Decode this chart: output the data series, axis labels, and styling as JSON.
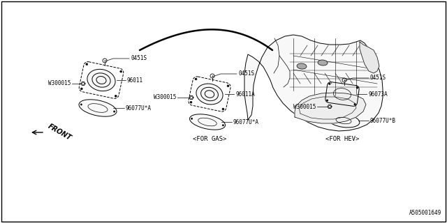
{
  "bg_color": "#ffffff",
  "border_color": "#000000",
  "diagram_id": "A505001649",
  "labels": {
    "p0451S_1": "0451S",
    "p96011": "96011",
    "pW300015_1": "W300015",
    "p96077UA_1": "96077U*A",
    "p0451S_2": "0451S",
    "p96011A": "96011A",
    "pW300015_2": "W300015",
    "p96077UA_2": "96077U*A",
    "p0451S_3": "0451S",
    "p96073A": "96073A",
    "pW300015_3": "W300015",
    "p96077UB": "96077U*B",
    "for_gas": "<FOR GAS>",
    "for_hev": "<FOR HEV>",
    "front": "FRONT"
  },
  "lc": "#000000",
  "fs": 5.5,
  "fs_label": 6.5
}
